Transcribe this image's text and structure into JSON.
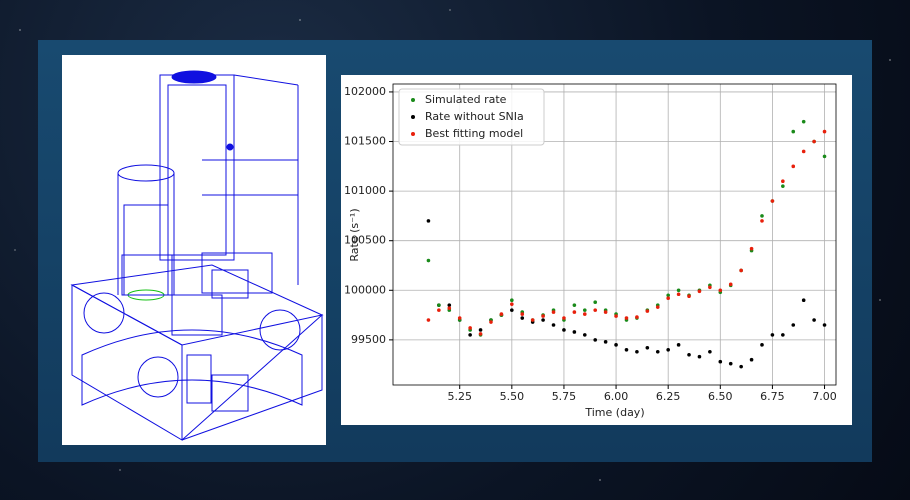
{
  "chart_data": {
    "type": "scatter",
    "x_label": "Time (day)",
    "y_label": "Rate (s⁻¹)",
    "x": [
      5.1,
      5.15,
      5.2,
      5.25,
      5.3,
      5.35,
      5.4,
      5.45,
      5.5,
      5.55,
      5.6,
      5.65,
      5.7,
      5.75,
      5.8,
      5.85,
      5.9,
      5.95,
      6.0,
      6.05,
      6.1,
      6.15,
      6.2,
      6.25,
      6.3,
      6.35,
      6.4,
      6.45,
      6.5,
      6.55,
      6.6,
      6.65,
      6.7,
      6.75,
      6.8,
      6.85,
      6.9,
      6.95,
      7.0
    ],
    "series": [
      {
        "name": "Simulated rate",
        "color": "#1a8a1a",
        "values": [
          100300,
          99850,
          99800,
          99700,
          99600,
          99550,
          99700,
          99750,
          99900,
          99780,
          99700,
          99750,
          99800,
          99700,
          99850,
          99800,
          99880,
          99800,
          99760,
          99700,
          99720,
          99800,
          99850,
          99950,
          100000,
          99950,
          100000,
          100050,
          99980,
          100050,
          100200,
          100400,
          100750,
          100900,
          101050,
          101600,
          101700,
          101500,
          101350
        ]
      },
      {
        "name": "Rate without SNIa",
        "color": "#000000",
        "values": [
          100700,
          99850,
          99850,
          99700,
          99550,
          99600,
          99700,
          99750,
          99800,
          99720,
          99680,
          99700,
          99650,
          99600,
          99580,
          99550,
          99500,
          99480,
          99450,
          99400,
          99380,
          99420,
          99380,
          99400,
          99450,
          99350,
          99330,
          99380,
          99280,
          99260,
          99230,
          99300,
          99450,
          99550,
          99550,
          99650,
          99900,
          99700,
          99650
        ]
      },
      {
        "name": "Best fitting model",
        "color": "#e8200c",
        "values": [
          99700,
          99800,
          99820,
          99720,
          99620,
          99560,
          99680,
          99760,
          99860,
          99760,
          99700,
          99740,
          99780,
          99720,
          99780,
          99760,
          99800,
          99780,
          99740,
          99720,
          99730,
          99790,
          99830,
          99920,
          99960,
          99940,
          99990,
          100030,
          100000,
          100060,
          100200,
          100420,
          100700,
          100900,
          101100,
          101250,
          101400,
          101500,
          101600
        ]
      }
    ],
    "xlim": [
      4.93,
      7.055
    ],
    "ylim": [
      99045,
      102080
    ],
    "xticks": [
      {
        "value": 5.25,
        "label": "5.25"
      },
      {
        "value": 5.5,
        "label": "5.50"
      },
      {
        "value": 5.75,
        "label": "5.75"
      },
      {
        "value": 6,
        "label": "6.00"
      },
      {
        "value": 6.25,
        "label": "6.25"
      },
      {
        "value": 6.5,
        "label": "6.50"
      },
      {
        "value": 6.75,
        "label": "6.75"
      },
      {
        "value": 7,
        "label": "7.00"
      }
    ],
    "yticks": [
      99500,
      100000,
      100500,
      101000,
      101500,
      102000
    ],
    "grid": true,
    "legend": "upper-left"
  }
}
